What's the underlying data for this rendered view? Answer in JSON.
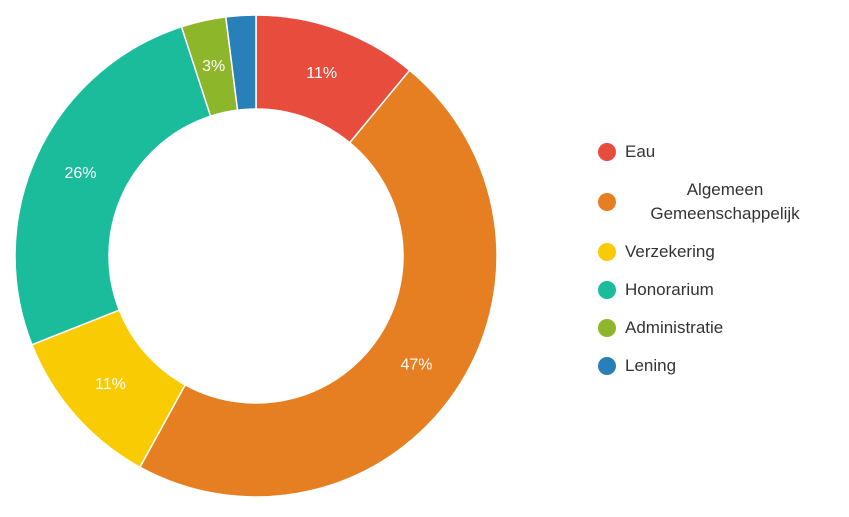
{
  "chart_data": {
    "type": "pie",
    "donut": true,
    "legend_position": "right",
    "labels_format": "percent",
    "slices": [
      {
        "label": "Eau",
        "value": 11,
        "percent_label": "11%",
        "color": "#e74c3c"
      },
      {
        "label": "Algemeen Gemeenschappelijk",
        "value": 47,
        "percent_label": "47%",
        "color": "#e67e22"
      },
      {
        "label": "Verzekering",
        "value": 11,
        "percent_label": "11%",
        "color": "#f9cb02"
      },
      {
        "label": "Honorarium",
        "value": 26,
        "percent_label": "26%",
        "color": "#1abc9c"
      },
      {
        "label": "Administratie",
        "value": 3,
        "percent_label": "3%",
        "color": "#8db62a"
      },
      {
        "label": "Lening",
        "value": 2,
        "percent_label": "",
        "color": "#2980b9"
      }
    ]
  }
}
